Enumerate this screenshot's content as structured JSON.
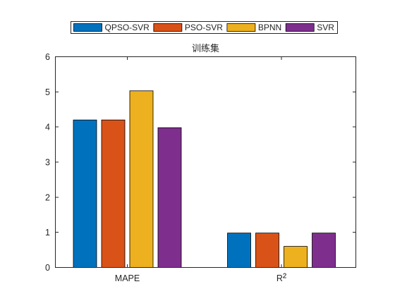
{
  "chart_data": {
    "type": "bar",
    "title": "训练集",
    "categories": [
      "MAPE",
      "R²"
    ],
    "series": [
      {
        "name": "QPSO-SVR",
        "color": "#0072BD",
        "values": [
          4.2,
          0.98
        ]
      },
      {
        "name": "PSO-SVR",
        "color": "#D95319",
        "values": [
          4.2,
          0.98
        ]
      },
      {
        "name": "BPNN",
        "color": "#EDB120",
        "values": [
          5.03,
          0.6
        ]
      },
      {
        "name": "SVR",
        "color": "#7E2F8E",
        "values": [
          3.98,
          0.98
        ]
      }
    ],
    "ylim": [
      0,
      6
    ],
    "yticks": [
      0,
      1,
      2,
      3,
      4,
      5,
      6
    ],
    "grid": false,
    "legend_position": "top",
    "axis_color": "#262626",
    "bar_edge_color": "#000000"
  }
}
